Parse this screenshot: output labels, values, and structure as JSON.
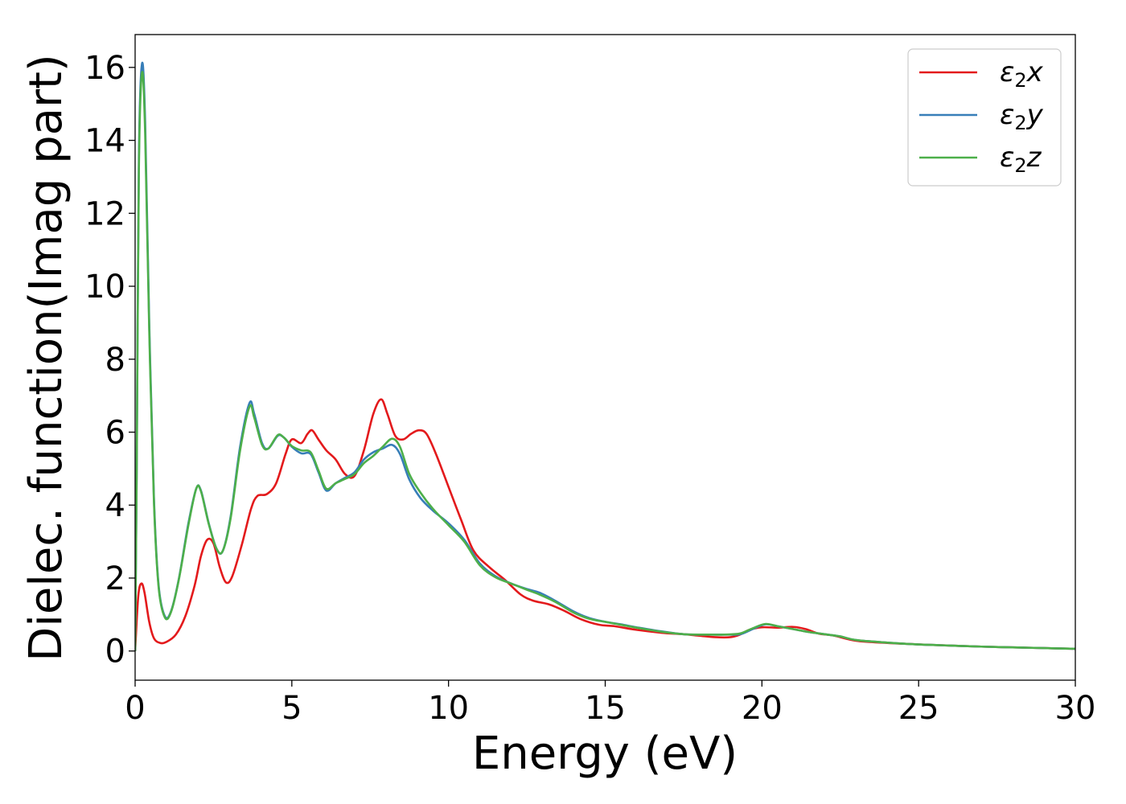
{
  "chart_data": {
    "type": "line",
    "xlabel": "Energy (eV)",
    "ylabel": "Dielec. function(Imag part)",
    "xlim": [
      0,
      30
    ],
    "ylim": [
      -0.8,
      16.9
    ],
    "xticks": [
      0,
      5,
      10,
      15,
      20,
      25,
      30
    ],
    "yticks": [
      0,
      2,
      4,
      6,
      8,
      10,
      12,
      14,
      16
    ],
    "grid": false,
    "legend_position": "top-right",
    "series": [
      {
        "name": "ε₂x",
        "legend_main": "ε",
        "legend_sub": "2",
        "legend_axis": "x",
        "color": "#e31a1c",
        "points": [
          [
            0,
            0.0
          ],
          [
            0.1,
            1.5
          ],
          [
            0.2,
            1.85
          ],
          [
            0.3,
            1.6
          ],
          [
            0.45,
            0.8
          ],
          [
            0.6,
            0.35
          ],
          [
            0.8,
            0.22
          ],
          [
            1.0,
            0.25
          ],
          [
            1.3,
            0.45
          ],
          [
            1.6,
            0.95
          ],
          [
            1.9,
            1.8
          ],
          [
            2.1,
            2.6
          ],
          [
            2.3,
            3.05
          ],
          [
            2.5,
            2.95
          ],
          [
            2.7,
            2.3
          ],
          [
            2.9,
            1.88
          ],
          [
            3.1,
            2.05
          ],
          [
            3.4,
            2.9
          ],
          [
            3.7,
            3.9
          ],
          [
            3.9,
            4.25
          ],
          [
            4.2,
            4.3
          ],
          [
            4.5,
            4.6
          ],
          [
            4.8,
            5.4
          ],
          [
            5.0,
            5.8
          ],
          [
            5.3,
            5.7
          ],
          [
            5.5,
            5.95
          ],
          [
            5.65,
            6.05
          ],
          [
            5.85,
            5.8
          ],
          [
            6.1,
            5.5
          ],
          [
            6.4,
            5.25
          ],
          [
            6.7,
            4.85
          ],
          [
            7.0,
            4.8
          ],
          [
            7.3,
            5.5
          ],
          [
            7.6,
            6.5
          ],
          [
            7.85,
            6.9
          ],
          [
            8.05,
            6.5
          ],
          [
            8.3,
            5.9
          ],
          [
            8.55,
            5.8
          ],
          [
            8.8,
            5.95
          ],
          [
            9.05,
            6.05
          ],
          [
            9.3,
            5.95
          ],
          [
            9.6,
            5.4
          ],
          [
            10.0,
            4.5
          ],
          [
            10.4,
            3.6
          ],
          [
            10.8,
            2.75
          ],
          [
            11.3,
            2.3
          ],
          [
            11.8,
            1.95
          ],
          [
            12.3,
            1.55
          ],
          [
            12.7,
            1.38
          ],
          [
            13.2,
            1.28
          ],
          [
            13.7,
            1.1
          ],
          [
            14.2,
            0.88
          ],
          [
            14.8,
            0.72
          ],
          [
            15.3,
            0.68
          ],
          [
            16.0,
            0.58
          ],
          [
            16.8,
            0.5
          ],
          [
            17.5,
            0.46
          ],
          [
            18.0,
            0.42
          ],
          [
            18.5,
            0.38
          ],
          [
            19.0,
            0.38
          ],
          [
            19.3,
            0.45
          ],
          [
            19.6,
            0.58
          ],
          [
            20.0,
            0.65
          ],
          [
            20.5,
            0.64
          ],
          [
            21.0,
            0.66
          ],
          [
            21.4,
            0.6
          ],
          [
            21.8,
            0.48
          ],
          [
            22.3,
            0.42
          ],
          [
            23.0,
            0.28
          ],
          [
            24.0,
            0.22
          ],
          [
            25.0,
            0.18
          ],
          [
            26.0,
            0.15
          ],
          [
            27.0,
            0.12
          ],
          [
            28.0,
            0.1
          ],
          [
            29.0,
            0.08
          ],
          [
            30.0,
            0.06
          ]
        ]
      },
      {
        "name": "ε₂y",
        "legend_main": "ε",
        "legend_sub": "2",
        "legend_axis": "y",
        "color": "#377eb8",
        "points": [
          [
            0,
            0.0
          ],
          [
            0.05,
            5.0
          ],
          [
            0.12,
            13.5
          ],
          [
            0.22,
            16.1
          ],
          [
            0.32,
            14.5
          ],
          [
            0.45,
            9.0
          ],
          [
            0.6,
            4.2
          ],
          [
            0.75,
            1.8
          ],
          [
            0.95,
            0.95
          ],
          [
            1.15,
            1.1
          ],
          [
            1.4,
            2.0
          ],
          [
            1.7,
            3.5
          ],
          [
            1.95,
            4.45
          ],
          [
            2.1,
            4.4
          ],
          [
            2.35,
            3.5
          ],
          [
            2.6,
            2.8
          ],
          [
            2.8,
            2.75
          ],
          [
            3.05,
            3.7
          ],
          [
            3.35,
            5.6
          ],
          [
            3.65,
            6.8
          ],
          [
            3.8,
            6.5
          ],
          [
            4.05,
            5.7
          ],
          [
            4.25,
            5.55
          ],
          [
            4.55,
            5.9
          ],
          [
            4.75,
            5.85
          ],
          [
            5.0,
            5.6
          ],
          [
            5.3,
            5.42
          ],
          [
            5.6,
            5.4
          ],
          [
            5.85,
            4.9
          ],
          [
            6.1,
            4.4
          ],
          [
            6.4,
            4.6
          ],
          [
            6.7,
            4.75
          ],
          [
            7.0,
            4.9
          ],
          [
            7.3,
            5.25
          ],
          [
            7.6,
            5.45
          ],
          [
            7.9,
            5.55
          ],
          [
            8.2,
            5.65
          ],
          [
            8.45,
            5.4
          ],
          [
            8.75,
            4.7
          ],
          [
            9.1,
            4.2
          ],
          [
            9.5,
            3.85
          ],
          [
            10.0,
            3.5
          ],
          [
            10.5,
            3.05
          ],
          [
            11.0,
            2.4
          ],
          [
            11.5,
            2.05
          ],
          [
            12.0,
            1.85
          ],
          [
            12.5,
            1.7
          ],
          [
            12.9,
            1.6
          ],
          [
            13.4,
            1.38
          ],
          [
            14.0,
            1.08
          ],
          [
            14.5,
            0.9
          ],
          [
            15.0,
            0.8
          ],
          [
            15.5,
            0.73
          ],
          [
            16.0,
            0.65
          ],
          [
            16.7,
            0.55
          ],
          [
            17.5,
            0.46
          ],
          [
            18.2,
            0.45
          ],
          [
            18.8,
            0.45
          ],
          [
            19.3,
            0.46
          ],
          [
            19.7,
            0.6
          ],
          [
            20.1,
            0.73
          ],
          [
            20.5,
            0.68
          ],
          [
            21.0,
            0.6
          ],
          [
            21.5,
            0.52
          ],
          [
            22.0,
            0.46
          ],
          [
            22.5,
            0.4
          ],
          [
            23.0,
            0.3
          ],
          [
            24.0,
            0.23
          ],
          [
            25.0,
            0.18
          ],
          [
            26.0,
            0.15
          ],
          [
            27.0,
            0.12
          ],
          [
            28.0,
            0.1
          ],
          [
            29.0,
            0.08
          ],
          [
            30.0,
            0.06
          ]
        ]
      },
      {
        "name": "ε₂z",
        "legend_main": "ε",
        "legend_sub": "2",
        "legend_axis": "z",
        "color": "#4daf4a",
        "points": [
          [
            0,
            0.0
          ],
          [
            0.05,
            4.8
          ],
          [
            0.12,
            13.2
          ],
          [
            0.22,
            15.85
          ],
          [
            0.32,
            14.2
          ],
          [
            0.45,
            8.8
          ],
          [
            0.6,
            4.1
          ],
          [
            0.75,
            1.75
          ],
          [
            0.95,
            0.92
          ],
          [
            1.15,
            1.08
          ],
          [
            1.4,
            1.98
          ],
          [
            1.7,
            3.45
          ],
          [
            1.95,
            4.45
          ],
          [
            2.1,
            4.38
          ],
          [
            2.35,
            3.48
          ],
          [
            2.6,
            2.8
          ],
          [
            2.8,
            2.75
          ],
          [
            3.05,
            3.65
          ],
          [
            3.35,
            5.5
          ],
          [
            3.65,
            6.7
          ],
          [
            3.8,
            6.4
          ],
          [
            4.05,
            5.65
          ],
          [
            4.25,
            5.55
          ],
          [
            4.55,
            5.92
          ],
          [
            4.75,
            5.85
          ],
          [
            5.0,
            5.62
          ],
          [
            5.3,
            5.5
          ],
          [
            5.6,
            5.45
          ],
          [
            5.85,
            4.95
          ],
          [
            6.1,
            4.45
          ],
          [
            6.4,
            4.6
          ],
          [
            6.7,
            4.72
          ],
          [
            7.0,
            4.85
          ],
          [
            7.3,
            5.15
          ],
          [
            7.6,
            5.35
          ],
          [
            7.9,
            5.6
          ],
          [
            8.2,
            5.82
          ],
          [
            8.45,
            5.6
          ],
          [
            8.75,
            4.85
          ],
          [
            9.1,
            4.35
          ],
          [
            9.5,
            3.9
          ],
          [
            10.0,
            3.45
          ],
          [
            10.5,
            3.0
          ],
          [
            11.0,
            2.35
          ],
          [
            11.5,
            2.02
          ],
          [
            12.0,
            1.85
          ],
          [
            12.5,
            1.68
          ],
          [
            12.9,
            1.55
          ],
          [
            13.4,
            1.35
          ],
          [
            14.0,
            1.05
          ],
          [
            14.5,
            0.88
          ],
          [
            15.0,
            0.8
          ],
          [
            15.5,
            0.72
          ],
          [
            16.0,
            0.64
          ],
          [
            16.7,
            0.54
          ],
          [
            17.5,
            0.46
          ],
          [
            18.2,
            0.45
          ],
          [
            18.8,
            0.45
          ],
          [
            19.3,
            0.48
          ],
          [
            19.7,
            0.62
          ],
          [
            20.1,
            0.74
          ],
          [
            20.5,
            0.68
          ],
          [
            21.0,
            0.6
          ],
          [
            21.5,
            0.52
          ],
          [
            22.0,
            0.46
          ],
          [
            22.5,
            0.4
          ],
          [
            23.0,
            0.3
          ],
          [
            24.0,
            0.23
          ],
          [
            25.0,
            0.18
          ],
          [
            26.0,
            0.15
          ],
          [
            27.0,
            0.12
          ],
          [
            28.0,
            0.1
          ],
          [
            29.0,
            0.08
          ],
          [
            30.0,
            0.06
          ]
        ]
      }
    ]
  }
}
